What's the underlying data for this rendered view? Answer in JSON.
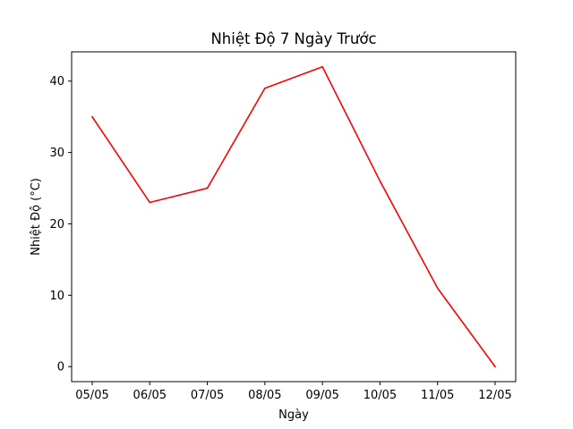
{
  "chart_data": {
    "type": "line",
    "title": "Nhiệt Độ 7 Ngày Trước",
    "xlabel": "Ngày",
    "ylabel": "Nhiệt Độ (°C)",
    "categories": [
      "05/05",
      "06/05",
      "07/05",
      "08/05",
      "09/05",
      "10/05",
      "11/05",
      "12/05"
    ],
    "series": [
      {
        "name": "Nhiệt Độ",
        "values": [
          35,
          23,
          25,
          39,
          42,
          26,
          11,
          0
        ],
        "color": "#ff0000"
      }
    ],
    "ylim": [
      -2.1,
      44.1
    ],
    "yticks": [
      0,
      10,
      20,
      30,
      40
    ],
    "grid": false
  }
}
